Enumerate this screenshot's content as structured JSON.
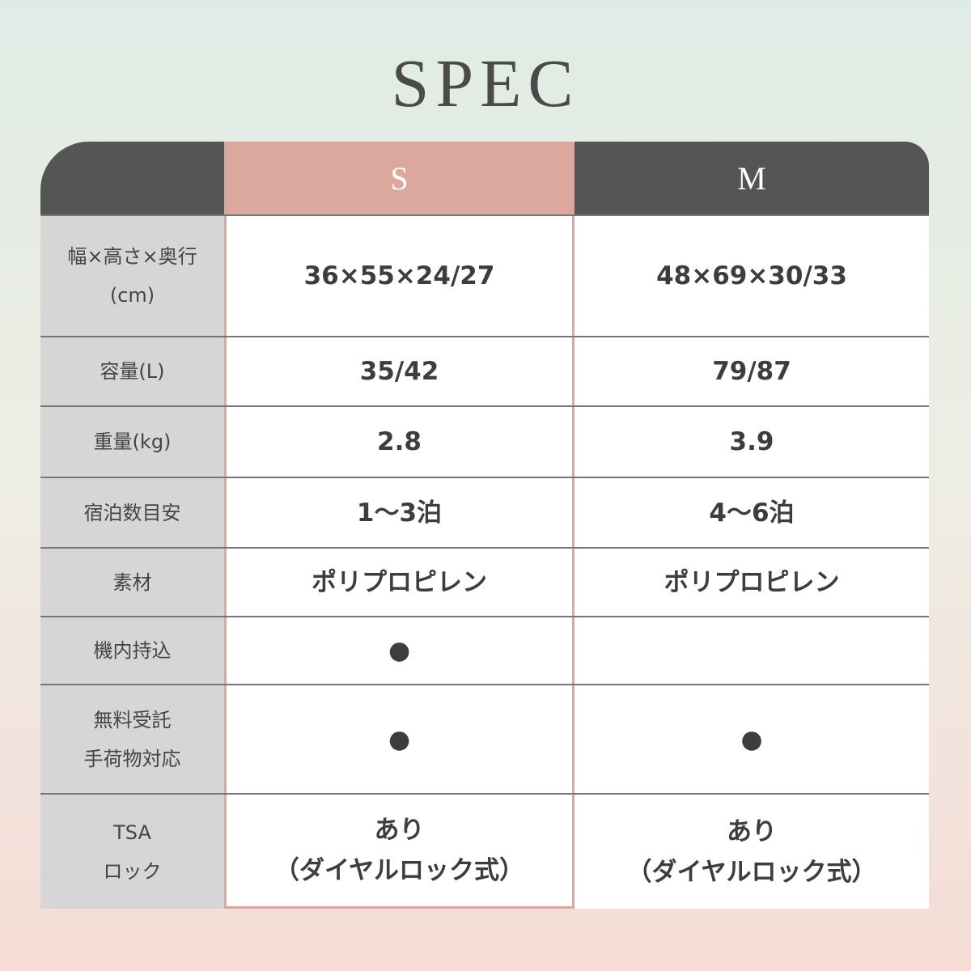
{
  "title": "SPEC",
  "columns": [
    "",
    "S",
    "M"
  ],
  "colors": {
    "accent": "#dca89e",
    "header_dark": "#555555",
    "label_bg": "#d6d6d6"
  },
  "rows": [
    {
      "label": "幅×高さ×奥行\n(cm)",
      "s": "36×55×24/27",
      "m": "48×69×30/33"
    },
    {
      "label": "容量(L)",
      "s": "35/42",
      "m": "79/87"
    },
    {
      "label": "重量(kg)",
      "s": "2.8",
      "m": "3.9"
    },
    {
      "label": "宿泊数目安",
      "s": "1〜3泊",
      "m": "4〜6泊"
    },
    {
      "label": "素材",
      "s": "ポリプロピレン",
      "m": "ポリプロピレン"
    },
    {
      "label": "機内持込",
      "s": "●",
      "m": ""
    },
    {
      "label": "無料受託\n手荷物対応",
      "s": "●",
      "m": "●"
    },
    {
      "label": "TSA\nロック",
      "s": "あり\n（ダイヤルロック式）",
      "m": "あり\n（ダイヤルロック式）"
    }
  ]
}
